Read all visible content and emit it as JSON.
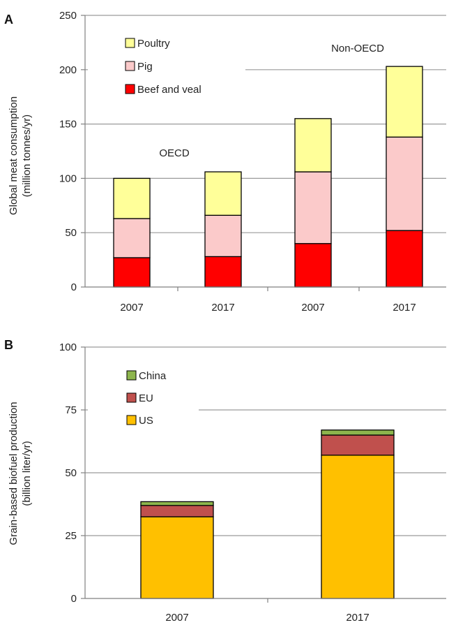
{
  "colors": {
    "poultry": "#FFFF99",
    "pig": "#FBCACA",
    "beef": "#FF0000",
    "china": "#8DB54D",
    "eu": "#C0504D",
    "us": "#FFC000",
    "grid": "#9a9a9a",
    "axis": "#808080"
  },
  "chart_data": [
    {
      "type": "bar",
      "stacked": true,
      "panel_label": "A",
      "ylabel_line1": "Global meat consumption",
      "ylabel_line2": "(million tonnes/yr)",
      "ylim": [
        0,
        250
      ],
      "yticks": [
        "0",
        "50",
        "100",
        "150",
        "200",
        "250"
      ],
      "grid": true,
      "legend_position": "top-left",
      "categories": [
        "2007",
        "2017",
        "2007",
        "2017"
      ],
      "group_labels": [
        "OECD",
        "Non-OECD"
      ],
      "series": [
        {
          "name": "Beef and veal",
          "values": [
            27,
            28,
            40,
            52
          ]
        },
        {
          "name": "Pig",
          "values": [
            36,
            38,
            66,
            86
          ]
        },
        {
          "name": "Poultry",
          "values": [
            37,
            40,
            49,
            65
          ]
        }
      ]
    },
    {
      "type": "bar",
      "stacked": true,
      "panel_label": "B",
      "ylabel_line1": "Grain-based biofuel production",
      "ylabel_line2": "(billion liter/yr)",
      "ylim": [
        0,
        100
      ],
      "yticks": [
        "0",
        "25",
        "50",
        "75",
        "100"
      ],
      "grid": true,
      "legend_position": "top-left",
      "categories": [
        "2007",
        "2017"
      ],
      "series": [
        {
          "name": "US",
          "values": [
            32.5,
            57
          ]
        },
        {
          "name": "EU",
          "values": [
            4.5,
            8
          ]
        },
        {
          "name": "China",
          "values": [
            1.5,
            2
          ]
        }
      ]
    }
  ]
}
